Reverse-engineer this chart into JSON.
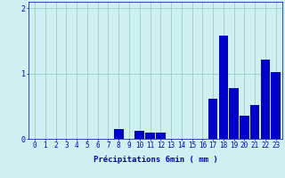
{
  "title": "",
  "xlabel": "Précipitations 6min ( mm )",
  "ylabel": "",
  "background_color": "#cff0f0",
  "bar_color": "#0000cc",
  "grid_color": "#99cccc",
  "axis_color": "#0000aa",
  "text_color": "#0000cc",
  "categories": [
    0,
    1,
    2,
    3,
    4,
    5,
    6,
    7,
    8,
    9,
    10,
    11,
    12,
    13,
    14,
    15,
    16,
    17,
    18,
    19,
    20,
    21,
    22,
    23
  ],
  "values": [
    0,
    0,
    0,
    0,
    0,
    0,
    0,
    0,
    0.15,
    0,
    0.12,
    0.1,
    0.1,
    0,
    0,
    0,
    0,
    0.62,
    1.58,
    0.78,
    0.35,
    0.52,
    1.22,
    1.02
  ],
  "ylim": [
    0,
    2.1
  ],
  "yticks": [
    0,
    1,
    2
  ],
  "figsize": [
    3.2,
    2.0
  ],
  "dpi": 100,
  "xlabel_fontsize": 6.5,
  "tick_fontsize": 5.5
}
